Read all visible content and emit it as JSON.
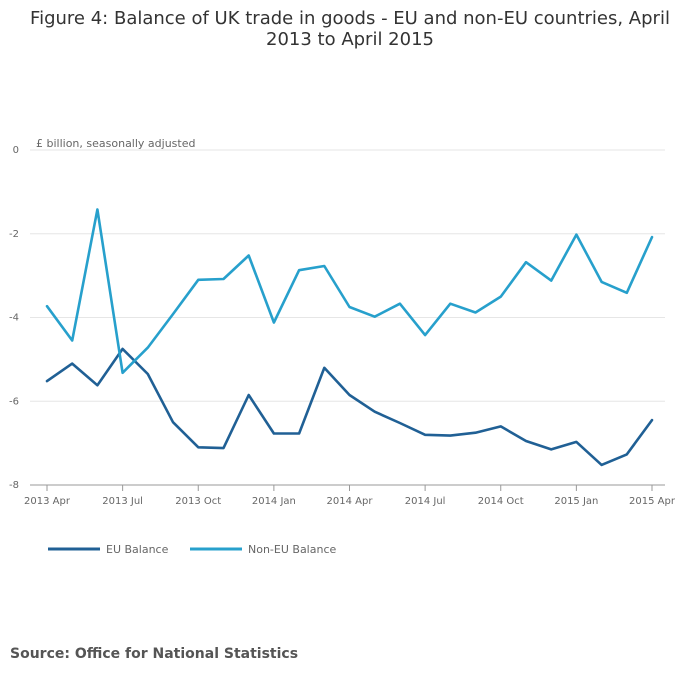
{
  "chart_data": {
    "type": "line",
    "title": "Figure 4: Balance of UK trade in goods - EU and non-EU countries, April 2013 to April 2015",
    "ylabel": "£ billion, seasonally adjusted",
    "xlabel": "",
    "ylim": [
      -8,
      0
    ],
    "yticks": [
      0,
      -2,
      -4,
      -6,
      -8
    ],
    "xticks": [
      {
        "index": 0,
        "label": "2013 Apr"
      },
      {
        "index": 3,
        "label": "2013 Jul"
      },
      {
        "index": 6,
        "label": "2013 Oct"
      },
      {
        "index": 9,
        "label": "2014 Jan"
      },
      {
        "index": 12,
        "label": "2014 Apr"
      },
      {
        "index": 15,
        "label": "2014 Jul"
      },
      {
        "index": 18,
        "label": "2014 Oct"
      },
      {
        "index": 21,
        "label": "2015 Jan"
      },
      {
        "index": 24,
        "label": "2015 Apr"
      }
    ],
    "categories": [
      "2013 Apr",
      "2013 May",
      "2013 Jun",
      "2013 Jul",
      "2013 Aug",
      "2013 Sep",
      "2013 Oct",
      "2013 Nov",
      "2013 Dec",
      "2014 Jan",
      "2014 Feb",
      "2014 Mar",
      "2014 Apr",
      "2014 May",
      "2014 Jun",
      "2014 Jul",
      "2014 Aug",
      "2014 Sep",
      "2014 Oct",
      "2014 Nov",
      "2014 Dec",
      "2015 Jan",
      "2015 Feb",
      "2015 Mar",
      "2015 Apr"
    ],
    "series": [
      {
        "name": "EU Balance",
        "color": "#206095",
        "values": [
          -5.52,
          -5.1,
          -5.62,
          -4.75,
          -5.35,
          -6.5,
          -7.1,
          -7.12,
          -5.85,
          -6.77,
          -6.77,
          -5.2,
          -5.85,
          -6.25,
          -6.52,
          -6.8,
          -6.82,
          -6.75,
          -6.6,
          -6.95,
          -7.15,
          -6.97,
          -7.52,
          -7.27,
          -6.45
        ]
      },
      {
        "name": "Non-EU Balance",
        "color": "#27a0cc",
        "values": [
          -3.73,
          -4.55,
          -1.42,
          -5.32,
          -4.72,
          -3.92,
          -3.1,
          -3.08,
          -2.52,
          -4.12,
          -2.87,
          -2.77,
          -3.75,
          -3.98,
          -3.67,
          -4.42,
          -3.67,
          -3.88,
          -3.5,
          -2.68,
          -3.12,
          -2.02,
          -3.15,
          -3.41,
          -2.08
        ]
      }
    ],
    "legend_position": "bottom-left",
    "grid": true
  },
  "source": "Source: Office for National Statistics"
}
